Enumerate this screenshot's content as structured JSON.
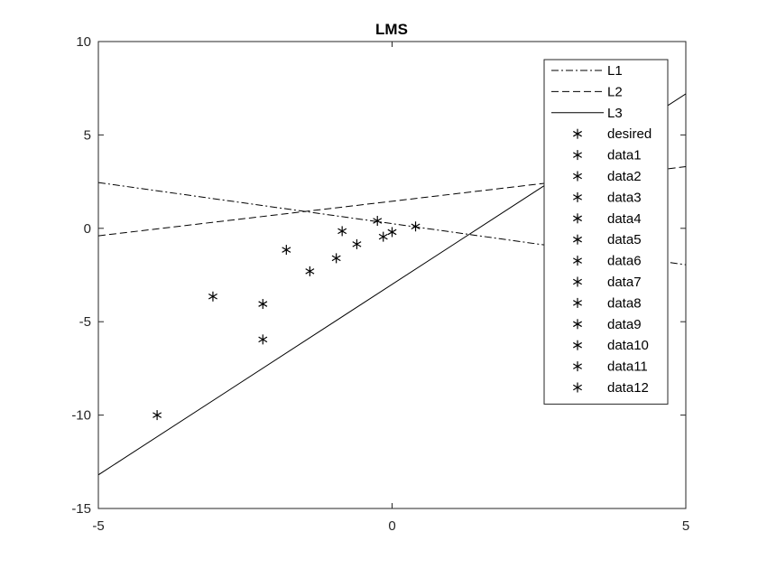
{
  "chart_data": {
    "type": "line",
    "title": "LMS",
    "xlabel": "",
    "ylabel": "",
    "xlim": [
      -5,
      5
    ],
    "ylim": [
      -15,
      10
    ],
    "x_ticks": [
      -5,
      0,
      5
    ],
    "y_ticks": [
      10,
      5,
      0,
      -5,
      -10,
      -15
    ],
    "x_tick_labels": [
      "-5",
      "0",
      "5"
    ],
    "y_tick_labels": [
      "10",
      "5",
      "0",
      "-5",
      "-10",
      "-15"
    ],
    "grid": false,
    "legend_position": "top-right",
    "series": [
      {
        "name": "L1",
        "kind": "line",
        "style": "dashdot",
        "color": "#000000",
        "x": [
          -5,
          5
        ],
        "y": [
          2.45,
          -1.95
        ]
      },
      {
        "name": "L2",
        "kind": "line",
        "style": "dashed",
        "color": "#000000",
        "x": [
          -5,
          5
        ],
        "y": [
          -0.4,
          3.3
        ]
      },
      {
        "name": "L3",
        "kind": "line",
        "style": "solid",
        "color": "#000000",
        "x": [
          -5,
          5
        ],
        "y": [
          -13.2,
          7.2
        ]
      },
      {
        "name": "desired",
        "kind": "marker",
        "x": [
          -4.0
        ],
        "y": [
          -10.0
        ]
      },
      {
        "name": "data1",
        "kind": "marker",
        "x": [
          -3.05
        ],
        "y": [
          -3.65
        ]
      },
      {
        "name": "data2",
        "kind": "marker",
        "x": [
          -2.2
        ],
        "y": [
          -4.05
        ]
      },
      {
        "name": "data3",
        "kind": "marker",
        "x": [
          -2.2
        ],
        "y": [
          -5.95
        ]
      },
      {
        "name": "data4",
        "kind": "marker",
        "x": [
          -1.8
        ],
        "y": [
          -1.15
        ]
      },
      {
        "name": "data5",
        "kind": "marker",
        "x": [
          -1.4
        ],
        "y": [
          -2.3
        ]
      },
      {
        "name": "data6",
        "kind": "marker",
        "x": [
          -0.95
        ],
        "y": [
          -1.6
        ]
      },
      {
        "name": "data7",
        "kind": "marker",
        "x": [
          -0.85
        ],
        "y": [
          -0.15
        ]
      },
      {
        "name": "data8",
        "kind": "marker",
        "x": [
          -0.6
        ],
        "y": [
          -0.85
        ]
      },
      {
        "name": "data9",
        "kind": "marker",
        "x": [
          -0.25
        ],
        "y": [
          0.4
        ]
      },
      {
        "name": "data10",
        "kind": "marker",
        "x": [
          -0.15
        ],
        "y": [
          -0.45
        ]
      },
      {
        "name": "data11",
        "kind": "marker",
        "x": [
          0.0
        ],
        "y": [
          -0.2
        ]
      },
      {
        "name": "data12",
        "kind": "marker",
        "x": [
          0.4
        ],
        "y": [
          0.1
        ]
      }
    ]
  }
}
